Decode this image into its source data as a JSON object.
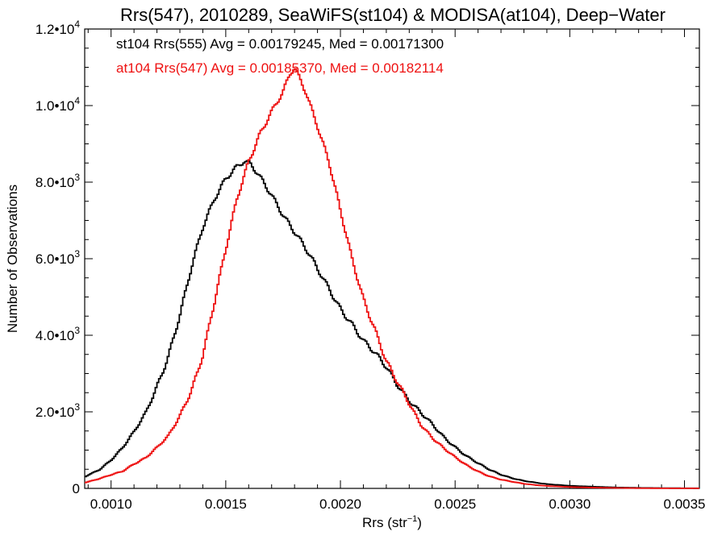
{
  "chart_data": {
    "type": "line",
    "title": "Rrs(547), 2010289, SeaWiFS(st104) & MODISA(at104), Deep−Water",
    "xlabel": "Rrs (str",
    "xlabel_sup": "−1",
    "xlabel_end": ")",
    "ylabel": "Number of Observations",
    "xlim": [
      0.000885,
      0.003565
    ],
    "ylim": [
      0,
      12000
    ],
    "grid": false,
    "x_ticks": [
      {
        "value": 0.001,
        "label": "0.0010"
      },
      {
        "value": 0.0015,
        "label": "0.0015"
      },
      {
        "value": 0.002,
        "label": "0.0020"
      },
      {
        "value": 0.0025,
        "label": "0.0025"
      },
      {
        "value": 0.003,
        "label": "0.0030"
      },
      {
        "value": 0.0035,
        "label": "0.0035"
      }
    ],
    "y_ticks": [
      {
        "value": 0,
        "mant": "0",
        "exp": ""
      },
      {
        "value": 2000,
        "mant": "2.0•10",
        "exp": "3"
      },
      {
        "value": 4000,
        "mant": "4.0•10",
        "exp": "3"
      },
      {
        "value": 6000,
        "mant": "6.0•10",
        "exp": "3"
      },
      {
        "value": 8000,
        "mant": "8.0•10",
        "exp": "3"
      },
      {
        "value": 10000,
        "mant": "1.0•10",
        "exp": "4"
      },
      {
        "value": 12000,
        "mant": "1.2•10",
        "exp": "4"
      }
    ],
    "annotations": [
      {
        "text": "st104 Rrs(555) Avg = 0.00179245, Med = 0.00171300",
        "color": "#000000"
      },
      {
        "text": "at104 Rrs(547) Avg = 0.00185370, Med = 0.00182114",
        "color": "#ee1111"
      }
    ],
    "series": [
      {
        "color": "#000000",
        "points": [
          [
            0.000885,
            300
          ],
          [
            0.00095,
            500
          ],
          [
            0.001,
            750
          ],
          [
            0.00105,
            1050
          ],
          [
            0.0011,
            1450
          ],
          [
            0.00115,
            1950
          ],
          [
            0.0012,
            2700
          ],
          [
            0.00125,
            3500
          ],
          [
            0.0013,
            4500
          ],
          [
            0.00135,
            5700
          ],
          [
            0.0014,
            6800
          ],
          [
            0.00145,
            7600
          ],
          [
            0.0015,
            8150
          ],
          [
            0.00155,
            8400
          ],
          [
            0.00158,
            8500
          ],
          [
            0.00161,
            8400
          ],
          [
            0.00165,
            8100
          ],
          [
            0.0017,
            7700
          ],
          [
            0.00175,
            7200
          ],
          [
            0.0018,
            6700
          ],
          [
            0.00185,
            6200
          ],
          [
            0.0019,
            5700
          ],
          [
            0.00195,
            5250
          ],
          [
            0.002,
            4750
          ],
          [
            0.00205,
            4300
          ],
          [
            0.0021,
            3800
          ],
          [
            0.00215,
            3500
          ],
          [
            0.0022,
            3200
          ],
          [
            0.00225,
            2750
          ],
          [
            0.0023,
            2300
          ],
          [
            0.00235,
            1950
          ],
          [
            0.0024,
            1650
          ],
          [
            0.00245,
            1350
          ],
          [
            0.0025,
            1100
          ],
          [
            0.00255,
            850
          ],
          [
            0.0026,
            650
          ],
          [
            0.00265,
            480
          ],
          [
            0.0027,
            360
          ],
          [
            0.00275,
            270
          ],
          [
            0.0028,
            200
          ],
          [
            0.00285,
            150
          ],
          [
            0.0029,
            110
          ],
          [
            0.003,
            70
          ],
          [
            0.0031,
            45
          ],
          [
            0.0032,
            25
          ],
          [
            0.0033,
            15
          ],
          [
            0.0034,
            8
          ],
          [
            0.003565,
            4
          ]
        ]
      },
      {
        "color": "#ee1111",
        "points": [
          [
            0.000885,
            150
          ],
          [
            0.00095,
            250
          ],
          [
            0.001,
            350
          ],
          [
            0.00105,
            450
          ],
          [
            0.0011,
            650
          ],
          [
            0.00115,
            800
          ],
          [
            0.0012,
            1050
          ],
          [
            0.00125,
            1350
          ],
          [
            0.0013,
            1900
          ],
          [
            0.00135,
            2600
          ],
          [
            0.0014,
            3500
          ],
          [
            0.00145,
            4800
          ],
          [
            0.0015,
            6200
          ],
          [
            0.00155,
            7600
          ],
          [
            0.0016,
            8600
          ],
          [
            0.00165,
            9300
          ],
          [
            0.0017,
            9800
          ],
          [
            0.00175,
            10300
          ],
          [
            0.00178,
            10800
          ],
          [
            0.0018,
            11000
          ],
          [
            0.00185,
            10400
          ],
          [
            0.0019,
            9500
          ],
          [
            0.00195,
            8500
          ],
          [
            0.002,
            7200
          ],
          [
            0.00205,
            6000
          ],
          [
            0.0021,
            5000
          ],
          [
            0.00215,
            4200
          ],
          [
            0.0022,
            3300
          ],
          [
            0.00225,
            2700
          ],
          [
            0.0023,
            2200
          ],
          [
            0.00235,
            1700
          ],
          [
            0.0024,
            1350
          ],
          [
            0.00245,
            1050
          ],
          [
            0.0025,
            800
          ],
          [
            0.00255,
            600
          ],
          [
            0.0026,
            450
          ],
          [
            0.00265,
            320
          ],
          [
            0.0027,
            230
          ],
          [
            0.00275,
            170
          ],
          [
            0.0028,
            120
          ],
          [
            0.00285,
            90
          ],
          [
            0.0029,
            65
          ],
          [
            0.003,
            35
          ],
          [
            0.0031,
            20
          ],
          [
            0.0032,
            12
          ],
          [
            0.0033,
            6
          ],
          [
            0.0034,
            3
          ],
          [
            0.003565,
            2
          ]
        ]
      }
    ]
  }
}
